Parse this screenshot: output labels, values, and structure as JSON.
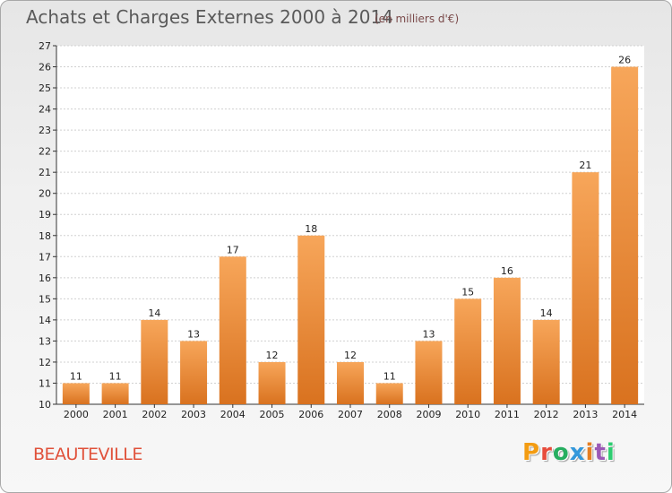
{
  "title": "Achats et Charges Externes 2000 à 2014",
  "subtitle": "(en milliers d'€)",
  "commune": "BEAUTEVILLE",
  "brand": "Proxiti",
  "brand_colors": [
    "#f39c12",
    "#e74c3c",
    "#27ae60",
    "#3498db",
    "#e67e22",
    "#9b59b6",
    "#2ecc71"
  ],
  "colors": {
    "bar_light": "#f7a65a",
    "bar_dark": "#d9721f",
    "grid": "#d0d0d0",
    "axis": "#333333"
  },
  "chart_data": {
    "type": "bar",
    "title": "Achats et Charges Externes 2000 à 2014",
    "subtitle": "(en milliers d'€)",
    "categories": [
      "2000",
      "2001",
      "2002",
      "2003",
      "2004",
      "2005",
      "2006",
      "2007",
      "2008",
      "2009",
      "2010",
      "2011",
      "2012",
      "2013",
      "2014"
    ],
    "values": [
      11,
      11,
      14,
      13,
      17,
      12,
      18,
      12,
      11,
      13,
      15,
      16,
      14,
      21,
      26
    ],
    "ylim": [
      10,
      27
    ],
    "yticks": [
      10,
      11,
      12,
      13,
      14,
      15,
      16,
      17,
      18,
      19,
      20,
      21,
      22,
      23,
      24,
      25,
      26,
      27
    ],
    "grid": true,
    "xlabel": "",
    "ylabel": ""
  }
}
